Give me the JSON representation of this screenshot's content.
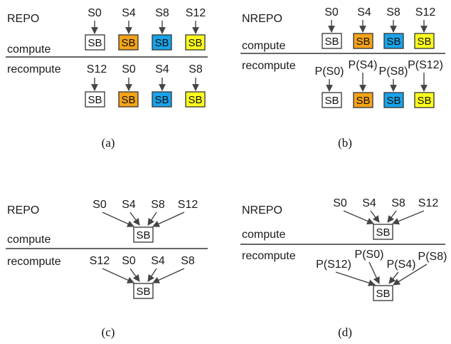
{
  "colors": {
    "white": "#ffffff",
    "orange": "#f5a31a",
    "blue": "#1aa3e8",
    "yellow": "#ffff1f",
    "stroke": "#333333"
  },
  "panels": {
    "a": {
      "mode": "REPO",
      "compute_label": "compute",
      "recompute_label": "recompute",
      "caption": "(a)",
      "compute_inputs": [
        "S0",
        "S4",
        "S8",
        "S12"
      ],
      "recompute_inputs": [
        "S12",
        "S0",
        "S4",
        "S8"
      ],
      "block": "SB"
    },
    "b": {
      "mode": "NREPO",
      "compute_label": "compute",
      "recompute_label": "recompute",
      "caption": "(b)",
      "compute_inputs": [
        "S0",
        "S4",
        "S8",
        "S12"
      ],
      "recompute_inputs": [
        "P(S0)",
        "P(S4)",
        "P(S8)",
        "P(S12)"
      ],
      "block": "SB"
    },
    "c": {
      "mode": "REPO",
      "compute_label": "compute",
      "recompute_label": "recompute",
      "caption": "(c)",
      "compute_inputs": [
        "S0",
        "S4",
        "S8",
        "S12"
      ],
      "recompute_inputs": [
        "S12",
        "S0",
        "S4",
        "S8"
      ],
      "block": "SB"
    },
    "d": {
      "mode": "NREPO",
      "compute_label": "compute",
      "recompute_label": "recompute",
      "caption": "(d)",
      "compute_inputs": [
        "S0",
        "S4",
        "S8",
        "S12"
      ],
      "recompute_inputs": [
        "P(S12)",
        "P(S0)",
        "P(S4)",
        "P(S8)"
      ],
      "block": "SB"
    }
  }
}
